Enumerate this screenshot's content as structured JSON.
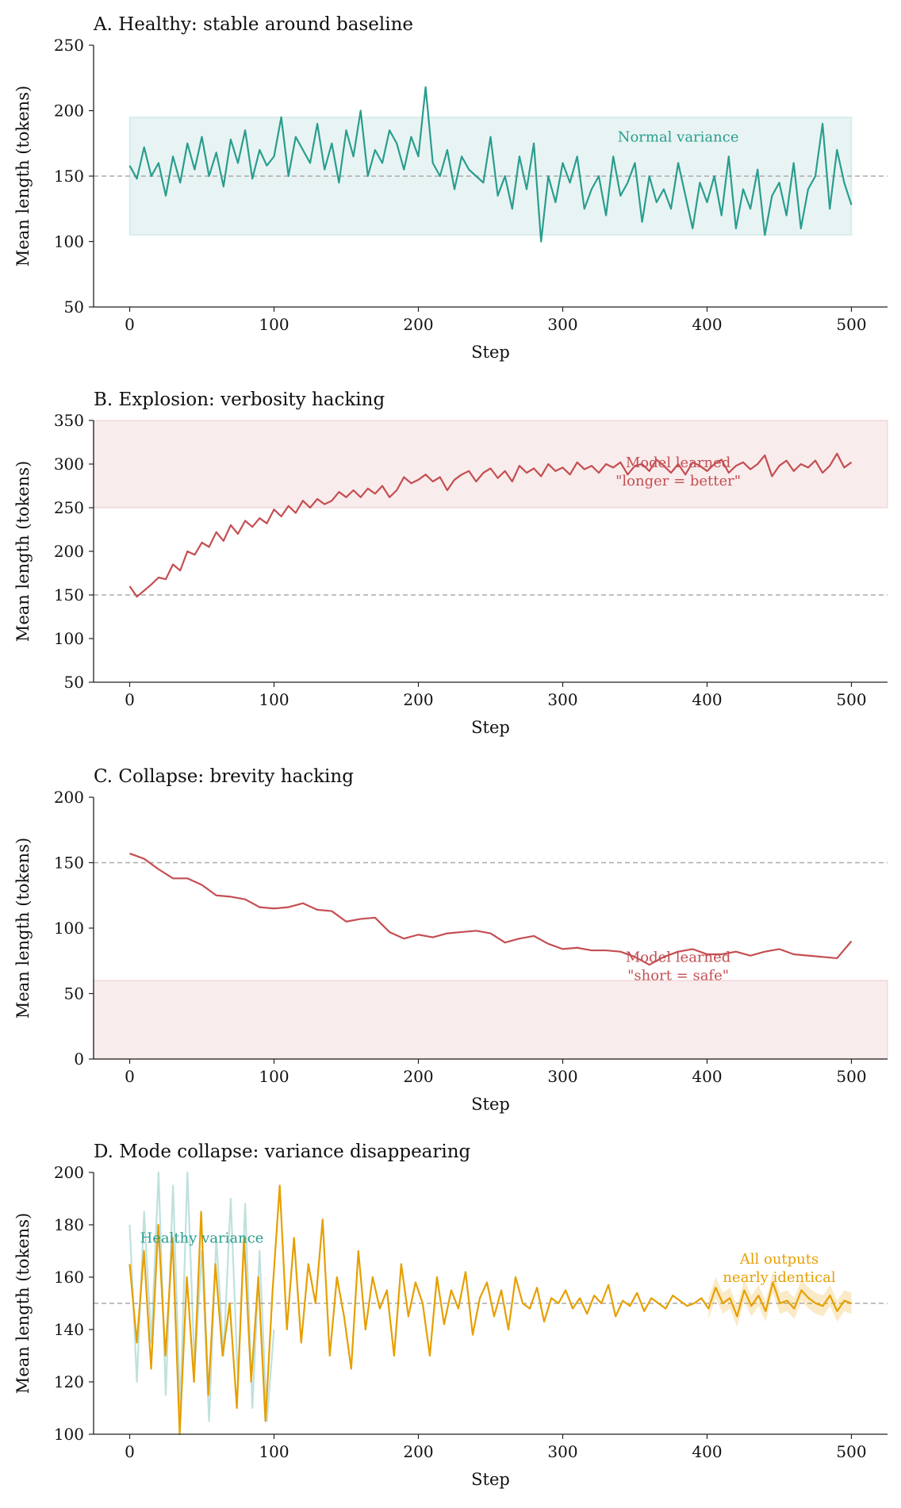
{
  "chart_data": [
    {
      "type": "line",
      "title": "A. Healthy: stable around baseline",
      "xlabel": "Step",
      "ylabel": "Mean length (tokens)",
      "xlim": [
        -25,
        525
      ],
      "ylim": [
        50,
        250
      ],
      "xticks": [
        0,
        100,
        200,
        300,
        400,
        500
      ],
      "yticks": [
        50,
        100,
        150,
        200,
        250
      ],
      "baseline": 150,
      "band": {
        "from_step": 0,
        "to_step": 500,
        "low": 105,
        "high": 195,
        "color": "#2a9d8f"
      },
      "annotations": [
        {
          "text": "Normal variance",
          "step": 380,
          "value": 180,
          "color": "#2a9d8f"
        }
      ],
      "series": [
        {
          "name": "mean length",
          "color": "#2a9d8f",
          "step_range": [
            0,
            500
          ],
          "values": [
            158,
            148,
            172,
            150,
            160,
            135,
            165,
            145,
            175,
            155,
            180,
            150,
            168,
            142,
            178,
            160,
            185,
            148,
            170,
            158,
            165,
            195,
            150,
            180,
            170,
            160,
            190,
            155,
            175,
            145,
            185,
            165,
            200,
            150,
            170,
            160,
            185,
            175,
            155,
            180,
            165,
            218,
            160,
            150,
            170,
            140,
            165,
            155,
            150,
            145,
            180,
            135,
            150,
            125,
            165,
            140,
            175,
            100,
            150,
            130,
            160,
            145,
            165,
            125,
            140,
            150,
            120,
            165,
            135,
            145,
            160,
            115,
            150,
            130,
            140,
            125,
            160,
            135,
            110,
            145,
            130,
            150,
            120,
            165,
            110,
            140,
            125,
            155,
            105,
            135,
            145,
            120,
            160,
            110,
            140,
            150,
            190,
            125,
            170,
            145,
            128
          ]
        }
      ]
    },
    {
      "type": "line",
      "title": "B. Explosion: verbosity hacking",
      "xlabel": "Step",
      "ylabel": "Mean length (tokens)",
      "xlim": [
        -25,
        525
      ],
      "ylim": [
        50,
        350
      ],
      "xticks": [
        0,
        100,
        200,
        300,
        400,
        500
      ],
      "yticks": [
        50,
        100,
        150,
        200,
        250,
        300,
        350
      ],
      "baseline": 150,
      "band": {
        "from_step": -25,
        "to_step": 525,
        "low": 250,
        "high": 350,
        "color": "#c44e52"
      },
      "annotations": [
        {
          "text": "Model learned",
          "step": 380,
          "value": 302,
          "color": "#c44e52"
        },
        {
          "text": "\"longer = better\"",
          "step": 380,
          "value": 289,
          "color": "#c44e52"
        }
      ],
      "series": [
        {
          "name": "mean length",
          "color": "#c44e52",
          "step_range": [
            0,
            500
          ],
          "values": [
            160,
            148,
            155,
            162,
            170,
            168,
            185,
            178,
            200,
            196,
            210,
            205,
            222,
            212,
            230,
            220,
            235,
            228,
            238,
            232,
            248,
            240,
            252,
            244,
            258,
            250,
            260,
            254,
            258,
            268,
            262,
            270,
            262,
            272,
            266,
            275,
            262,
            270,
            285,
            278,
            282,
            288,
            280,
            285,
            270,
            282,
            288,
            292,
            280,
            290,
            295,
            284,
            292,
            280,
            298,
            290,
            295,
            286,
            300,
            292,
            296,
            288,
            302,
            294,
            298,
            290,
            300,
            296,
            302,
            288,
            298,
            300,
            292,
            305,
            298,
            290,
            300,
            288,
            302,
            298,
            292,
            300,
            305,
            290,
            298,
            302,
            294,
            300,
            310,
            286,
            298,
            304,
            292,
            300,
            296,
            304,
            290,
            298,
            312,
            296,
            302
          ]
        }
      ]
    },
    {
      "type": "line",
      "title": "C. Collapse: brevity hacking",
      "xlabel": "Step",
      "ylabel": "Mean length (tokens)",
      "xlim": [
        -25,
        525
      ],
      "ylim": [
        0,
        200
      ],
      "xticks": [
        0,
        100,
        200,
        300,
        400,
        500
      ],
      "yticks": [
        0,
        50,
        100,
        150,
        200
      ],
      "baseline": 150,
      "band": {
        "from_step": -25,
        "to_step": 525,
        "low": 0,
        "high": 60,
        "color": "#c44e52"
      },
      "annotations": [
        {
          "text": "Model learned",
          "step": 380,
          "value": 78,
          "color": "#c44e52"
        },
        {
          "text": "\"short = safe\"",
          "step": 380,
          "value": 64,
          "color": "#c44e52"
        }
      ],
      "series": [
        {
          "name": "mean length",
          "color": "#c44e52",
          "step_range": [
            0,
            500
          ],
          "values": [
            157,
            153,
            145,
            138,
            138,
            133,
            125,
            124,
            122,
            116,
            115,
            116,
            119,
            114,
            113,
            105,
            107,
            108,
            97,
            92,
            95,
            93,
            96,
            97,
            98,
            96,
            89,
            92,
            94,
            88,
            84,
            85,
            83,
            83,
            82,
            78,
            72,
            78,
            82,
            84,
            80,
            80,
            82,
            79,
            82,
            84,
            80,
            79,
            78,
            77,
            90
          ]
        }
      ]
    },
    {
      "type": "line",
      "title": "D. Mode collapse: variance disappearing",
      "xlabel": "Step",
      "ylabel": "Mean length (tokens)",
      "xlim": [
        -25,
        525
      ],
      "ylim": [
        100,
        200
      ],
      "xticks": [
        0,
        100,
        200,
        300,
        400,
        500
      ],
      "yticks": [
        100,
        120,
        140,
        160,
        180,
        200
      ],
      "baseline": 150,
      "annotations": [
        {
          "text": "Healthy variance",
          "step": 50,
          "value": 175,
          "color": "#2a9d8f"
        },
        {
          "text": "All outputs",
          "step": 450,
          "value": 167,
          "color": "#e69f00"
        },
        {
          "text": "nearly identical",
          "step": 450,
          "value": 160.5,
          "color": "#e69f00"
        }
      ],
      "series": [
        {
          "name": "healthy samples",
          "color": "#2a9d8f",
          "opacity": 0.3,
          "step_range": [
            0,
            100
          ],
          "values": [
            180,
            120,
            185,
            135,
            200,
            115,
            195,
            110,
            200,
            125,
            170,
            105,
            175,
            130,
            190,
            120,
            188,
            110,
            170,
            105,
            140
          ]
        },
        {
          "name": "mean length",
          "color": "#e69f00",
          "step_range": [
            0,
            500
          ],
          "band_from_step": 400,
          "band_halfwidth": 4,
          "values": [
            165,
            135,
            170,
            125,
            180,
            130,
            175,
            100,
            160,
            120,
            185,
            115,
            165,
            130,
            150,
            110,
            175,
            120,
            160,
            105,
            155,
            195,
            140,
            175,
            135,
            165,
            150,
            182,
            130,
            160,
            145,
            125,
            170,
            140,
            160,
            148,
            155,
            130,
            165,
            145,
            158,
            150,
            130,
            160,
            142,
            155,
            148,
            162,
            138,
            152,
            158,
            145,
            155,
            140,
            160,
            150,
            148,
            156,
            143,
            152,
            150,
            155,
            148,
            152,
            146,
            153,
            150,
            157,
            145,
            151,
            149,
            154,
            147,
            152,
            150,
            148,
            153,
            151,
            149,
            150,
            152,
            148,
            156,
            150,
            152,
            145,
            155,
            149,
            153,
            147,
            158,
            150,
            151,
            148,
            155,
            152,
            150,
            149,
            153,
            147,
            151,
            150
          ]
        }
      ]
    }
  ]
}
